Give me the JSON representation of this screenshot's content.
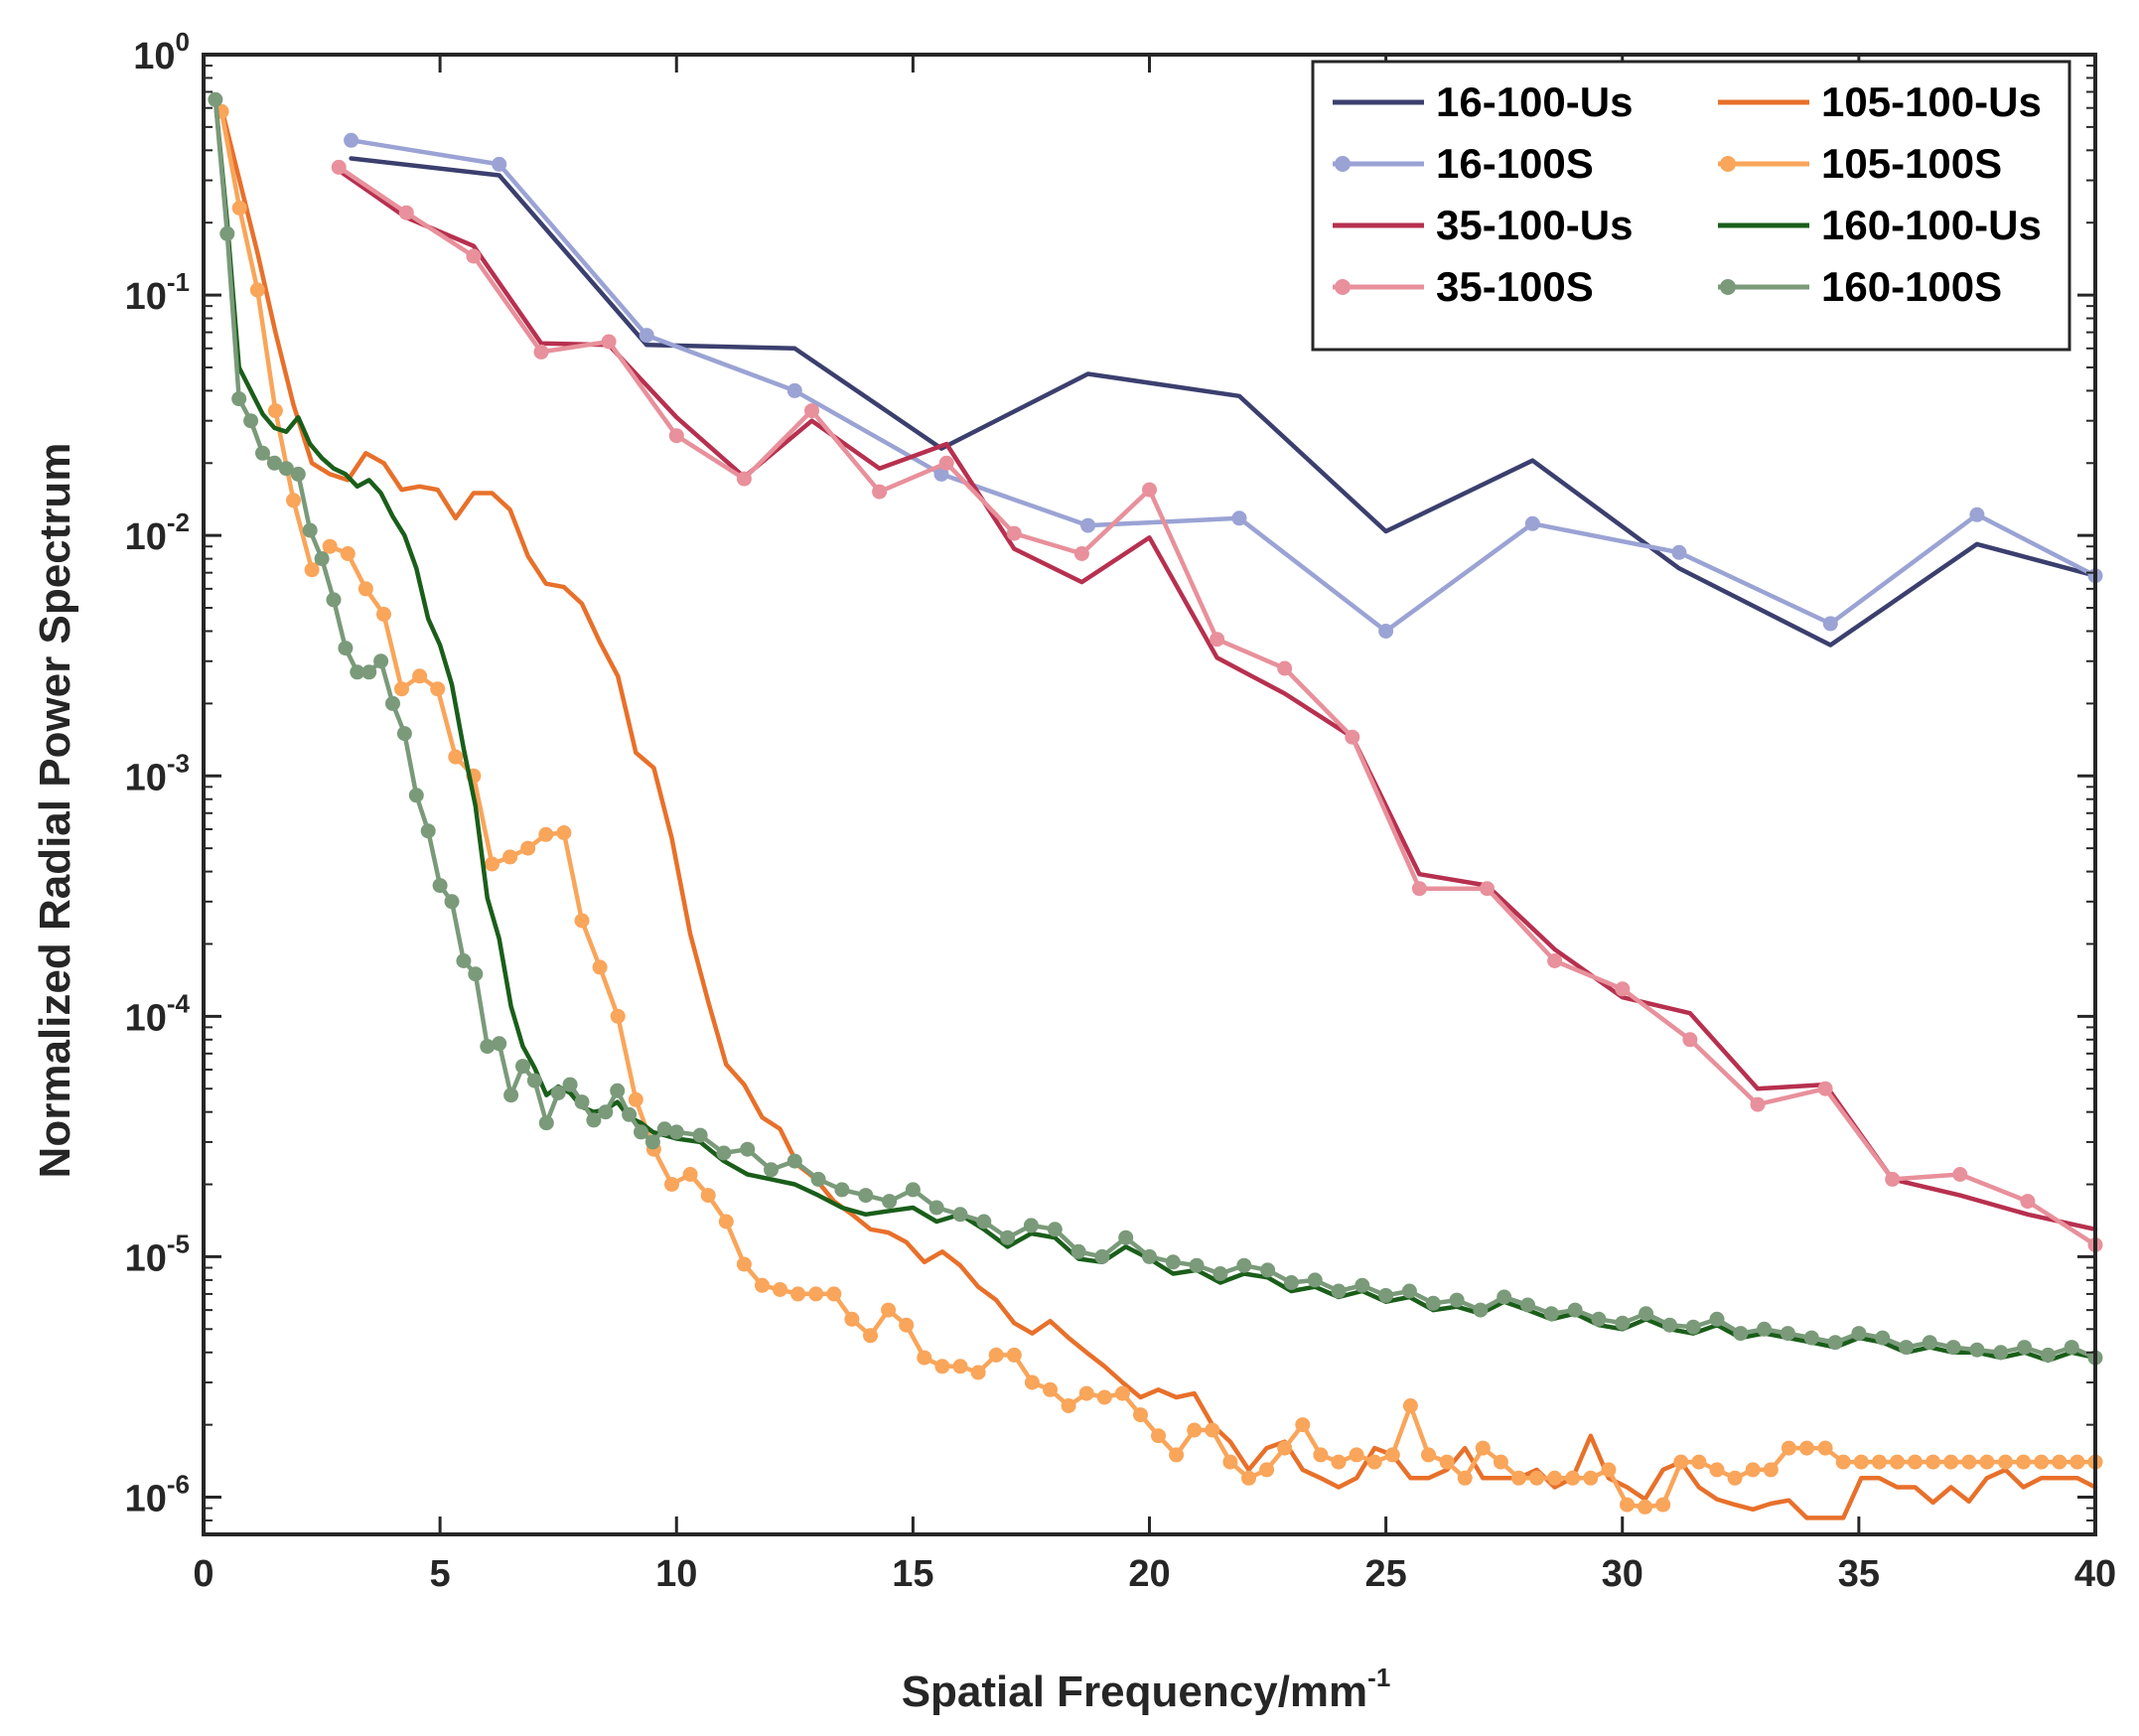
{
  "chart_data": {
    "type": "line",
    "title": "",
    "xlabel": "Spatial Frequency/mm",
    "xlabel_sup": "-1",
    "ylabel": "Normalized Radial Power Spectrum",
    "xlim": [
      0,
      40
    ],
    "ylim": [
      7e-07,
      1
    ],
    "yscale": "log",
    "grid": false,
    "legend_position": "top-right",
    "x_ticks": [
      {
        "value": 0,
        "label": "0"
      },
      {
        "value": 5,
        "label": "5"
      },
      {
        "value": 10,
        "label": "10"
      },
      {
        "value": 15,
        "label": "15"
      },
      {
        "value": 20,
        "label": "20"
      },
      {
        "value": 25,
        "label": "25"
      },
      {
        "value": 30,
        "label": "30"
      },
      {
        "value": 35,
        "label": "35"
      },
      {
        "value": 40,
        "label": "40"
      }
    ],
    "y_ticks": [
      {
        "value": 1,
        "base": "10",
        "exp": "0"
      },
      {
        "value": 0.1,
        "base": "10",
        "exp": "-1"
      },
      {
        "value": 0.01,
        "base": "10",
        "exp": "-2"
      },
      {
        "value": 0.001,
        "base": "10",
        "exp": "-3"
      },
      {
        "value": 0.0001,
        "base": "10",
        "exp": "-4"
      },
      {
        "value": 1e-05,
        "base": "10",
        "exp": "-5"
      },
      {
        "value": 1e-06,
        "base": "10",
        "exp": "-6"
      }
    ],
    "series": [
      {
        "name": "16-100-Us",
        "color": "#3b3f6e",
        "markers": false,
        "x": [
          3.12,
          6.25,
          9.37,
          12.5,
          15.6,
          18.7,
          21.9,
          25.0,
          28.1,
          31.2,
          34.4,
          37.5,
          40.0
        ],
        "y": [
          0.37,
          0.315,
          0.062,
          0.06,
          0.023,
          0.047,
          0.038,
          0.0104,
          0.0205,
          0.0073,
          0.0035,
          0.0092,
          0.0068
        ]
      },
      {
        "name": "16-100S",
        "color": "#9aa3d4",
        "markers": true,
        "x": [
          3.12,
          6.25,
          9.37,
          12.5,
          15.6,
          18.7,
          21.9,
          25.0,
          28.1,
          31.2,
          34.4,
          37.5,
          40.0
        ],
        "y": [
          0.44,
          0.35,
          0.068,
          0.04,
          0.018,
          0.011,
          0.0118,
          0.004,
          0.0112,
          0.0085,
          0.0043,
          0.0122,
          0.0068
        ]
      },
      {
        "name": "35-100-Us",
        "color": "#b7304f",
        "markers": false,
        "x": [
          2.86,
          4.29,
          5.71,
          7.14,
          8.57,
          10.0,
          11.43,
          12.86,
          14.29,
          15.71,
          17.14,
          18.57,
          20.0,
          21.43,
          22.86,
          24.29,
          25.71,
          27.14,
          28.57,
          30.0,
          31.43,
          32.86,
          34.29,
          35.71,
          37.14,
          38.57,
          40.0
        ],
        "y": [
          0.33,
          0.21,
          0.16,
          0.063,
          0.062,
          0.031,
          0.0175,
          0.03,
          0.019,
          0.024,
          0.0088,
          0.0064,
          0.0098,
          0.0031,
          0.0022,
          0.00145,
          0.00039,
          0.00035,
          0.00019,
          0.00012,
          0.000103,
          5e-05,
          5.2e-05,
          2.1e-05,
          1.8e-05,
          1.5e-05,
          1.3e-05
        ]
      },
      {
        "name": "35-100S",
        "color": "#e8909b",
        "markers": true,
        "x": [
          2.86,
          4.29,
          5.71,
          7.14,
          8.57,
          10.0,
          11.43,
          12.86,
          14.29,
          15.71,
          17.14,
          18.57,
          20.0,
          21.43,
          22.86,
          24.29,
          25.71,
          27.14,
          28.57,
          30.0,
          31.43,
          32.86,
          34.29,
          35.71,
          37.14,
          38.57,
          40.0
        ],
        "y": [
          0.34,
          0.22,
          0.145,
          0.058,
          0.064,
          0.026,
          0.0172,
          0.033,
          0.0152,
          0.02,
          0.0102,
          0.0084,
          0.0155,
          0.0037,
          0.0028,
          0.00145,
          0.00034,
          0.00034,
          0.00017,
          0.00013,
          8e-05,
          4.3e-05,
          5e-05,
          2.1e-05,
          2.2e-05,
          1.7e-05,
          1.12e-05
        ]
      },
      {
        "name": "105-100-Us",
        "color": "#e8702a",
        "markers": false,
        "x": [
          0.38,
          0.76,
          1.14,
          1.52,
          1.9,
          2.29,
          2.67,
          3.05,
          3.43,
          3.81,
          4.19,
          4.57,
          4.95,
          5.33,
          5.71,
          6.1,
          6.48,
          6.86,
          7.24,
          7.62,
          8.0,
          8.38,
          8.76,
          9.14,
          9.52,
          9.9,
          10.29,
          10.67,
          11.05,
          11.43,
          11.81,
          12.19,
          12.57,
          12.95,
          13.33,
          13.71,
          14.1,
          14.48,
          14.86,
          15.24,
          15.62,
          16.0,
          16.38,
          16.76,
          17.14,
          17.52,
          17.9,
          18.29,
          18.67,
          19.05,
          19.43,
          19.81,
          20.19,
          20.57,
          20.95,
          21.33,
          21.71,
          22.1,
          22.48,
          22.86,
          23.24,
          23.62,
          24.0,
          24.38,
          24.76,
          25.14,
          25.52,
          25.9,
          26.29,
          26.67,
          27.05,
          27.43,
          27.81,
          28.19,
          28.57,
          28.95,
          29.33,
          29.71,
          30.1,
          30.48,
          30.86,
          31.24,
          31.62,
          32.0,
          32.38,
          32.76,
          33.14,
          33.52,
          33.9,
          34.29,
          34.67,
          35.05,
          35.43,
          35.81,
          36.19,
          36.57,
          36.95,
          37.33,
          37.71,
          38.1,
          38.48,
          38.86,
          39.24,
          39.62,
          40.0
        ],
        "y": [
          0.6,
          0.3,
          0.15,
          0.07,
          0.035,
          0.02,
          0.018,
          0.017,
          0.022,
          0.02,
          0.0155,
          0.016,
          0.0155,
          0.0118,
          0.015,
          0.015,
          0.0128,
          0.0082,
          0.0063,
          0.0061,
          0.0052,
          0.0036,
          0.0026,
          0.00125,
          0.00108,
          0.00055,
          0.00022,
          0.000115,
          6.3e-05,
          5.2e-05,
          3.8e-05,
          3.4e-05,
          2.4e-05,
          2.1e-05,
          1.7e-05,
          1.5e-05,
          1.3e-05,
          1.26e-05,
          1.15e-05,
          9.5e-06,
          1.05e-05,
          9.2e-06,
          7.5e-06,
          6.6e-06,
          5.3e-06,
          4.8e-06,
          5.4e-06,
          4.6e-06,
          4e-06,
          3.5e-06,
          3e-06,
          2.6e-06,
          2.8e-06,
          2.6e-06,
          2.7e-06,
          2e-06,
          1.7e-06,
          1.3e-06,
          1.6e-06,
          1.7e-06,
          1.3e-06,
          1.2e-06,
          1.1e-06,
          1.2e-06,
          1.6e-06,
          1.5e-06,
          1.2e-06,
          1.2e-06,
          1.3e-06,
          1.6e-06,
          1.2e-06,
          1.2e-06,
          1.2e-06,
          1.3e-06,
          1.1e-06,
          1.2e-06,
          1.8e-06,
          1.2e-06,
          1.1e-06,
          9.8e-07,
          1.3e-06,
          1.4e-06,
          1.1e-06,
          9.8e-07,
          9.3e-07,
          8.9e-07,
          9.4e-07,
          9.7e-07,
          8.2e-07,
          8.2e-07,
          8.2e-07,
          1.2e-06,
          1.2e-06,
          1.1e-06,
          1.1e-06,
          9.5e-07,
          1.1e-06,
          9.6e-07,
          1.2e-06,
          1.3e-06,
          1.1e-06,
          1.2e-06,
          1.2e-06,
          1.2e-06,
          1.1e-06
        ]
      },
      {
        "name": "105-100S",
        "color": "#f9a55a",
        "markers": true,
        "x": [
          0.38,
          0.76,
          1.14,
          1.52,
          1.9,
          2.29,
          2.67,
          3.05,
          3.43,
          3.81,
          4.19,
          4.57,
          4.95,
          5.33,
          5.71,
          6.1,
          6.48,
          6.86,
          7.24,
          7.62,
          8.0,
          8.38,
          8.76,
          9.14,
          9.52,
          9.9,
          10.29,
          10.67,
          11.05,
          11.43,
          11.81,
          12.19,
          12.57,
          12.95,
          13.33,
          13.71,
          14.1,
          14.48,
          14.86,
          15.24,
          15.62,
          16.0,
          16.38,
          16.76,
          17.14,
          17.52,
          17.9,
          18.29,
          18.67,
          19.05,
          19.43,
          19.81,
          20.19,
          20.57,
          20.95,
          21.33,
          21.71,
          22.1,
          22.48,
          22.86,
          23.24,
          23.62,
          24.0,
          24.38,
          24.76,
          25.14,
          25.52,
          25.9,
          26.29,
          26.67,
          27.05,
          27.43,
          27.81,
          28.19,
          28.57,
          28.95,
          29.33,
          29.71,
          30.1,
          30.48,
          30.86,
          31.24,
          31.62,
          32.0,
          32.38,
          32.76,
          33.14,
          33.52,
          33.9,
          34.29,
          34.67,
          35.05,
          35.43,
          35.81,
          36.19,
          36.57,
          36.95,
          37.33,
          37.71,
          38.1,
          38.48,
          38.86,
          39.24,
          39.62,
          40.0
        ],
        "y": [
          0.58,
          0.23,
          0.105,
          0.033,
          0.014,
          0.0072,
          0.009,
          0.0084,
          0.006,
          0.0047,
          0.0023,
          0.0026,
          0.0023,
          0.0012,
          0.001,
          0.00043,
          0.00046,
          0.0005,
          0.00057,
          0.00058,
          0.00025,
          0.00016,
          0.0001,
          4.5e-05,
          2.8e-05,
          2e-05,
          2.2e-05,
          1.8e-05,
          1.4e-05,
          9.3e-06,
          7.6e-06,
          7.3e-06,
          7e-06,
          7e-06,
          7e-06,
          5.5e-06,
          4.7e-06,
          6e-06,
          5.2e-06,
          3.8e-06,
          3.5e-06,
          3.5e-06,
          3.3e-06,
          3.9e-06,
          3.9e-06,
          3e-06,
          2.8e-06,
          2.4e-06,
          2.7e-06,
          2.6e-06,
          2.7e-06,
          2.2e-06,
          1.8e-06,
          1.5e-06,
          1.9e-06,
          1.9e-06,
          1.4e-06,
          1.2e-06,
          1.3e-06,
          1.6e-06,
          2e-06,
          1.5e-06,
          1.4e-06,
          1.5e-06,
          1.4e-06,
          1.5e-06,
          2.4e-06,
          1.5e-06,
          1.4e-06,
          1.2e-06,
          1.6e-06,
          1.4e-06,
          1.2e-06,
          1.2e-06,
          1.2e-06,
          1.2e-06,
          1.2e-06,
          1.3e-06,
          9.3e-07,
          9.1e-07,
          9.3e-07,
          1.4e-06,
          1.4e-06,
          1.3e-06,
          1.2e-06,
          1.3e-06,
          1.3e-06,
          1.6e-06,
          1.6e-06,
          1.6e-06,
          1.4e-06,
          1.4e-06,
          1.4e-06,
          1.4e-06,
          1.4e-06,
          1.4e-06,
          1.4e-06,
          1.4e-06,
          1.4e-06,
          1.4e-06,
          1.4e-06,
          1.4e-06,
          1.4e-06,
          1.4e-06,
          1.4e-06
        ]
      },
      {
        "name": "160-100-Us",
        "color": "#1a5e1a",
        "markers": false,
        "x": [
          0.25,
          0.5,
          0.75,
          1.0,
          1.25,
          1.5,
          1.75,
          2.0,
          2.25,
          2.5,
          2.75,
          3.0,
          3.25,
          3.5,
          3.75,
          4.0,
          4.25,
          4.5,
          4.75,
          5.0,
          5.25,
          5.5,
          5.75,
          6.0,
          6.25,
          6.5,
          6.75,
          7.0,
          7.25,
          7.5,
          7.75,
          8.0,
          8.25,
          8.5,
          8.75,
          9.0,
          9.25,
          9.5,
          9.75,
          10.0,
          10.5,
          11.0,
          11.5,
          12.0,
          12.5,
          13.0,
          13.5,
          14.0,
          14.5,
          15.0,
          15.5,
          16.0,
          16.5,
          17.0,
          17.5,
          18.0,
          18.5,
          19.0,
          19.5,
          20.0,
          20.5,
          21.0,
          21.5,
          22.0,
          22.5,
          23.0,
          23.5,
          24.0,
          24.5,
          25.0,
          25.5,
          26.0,
          26.5,
          27.0,
          27.5,
          28.0,
          28.5,
          29.0,
          29.5,
          30.0,
          30.5,
          31.0,
          31.5,
          32.0,
          32.5,
          33.0,
          33.5,
          34.0,
          34.5,
          35.0,
          35.5,
          36.0,
          36.5,
          37.0,
          37.5,
          38.0,
          38.5,
          39.0,
          39.5,
          40.0
        ],
        "y": [
          0.65,
          0.2,
          0.05,
          0.04,
          0.032,
          0.028,
          0.027,
          0.031,
          0.024,
          0.021,
          0.019,
          0.018,
          0.016,
          0.017,
          0.015,
          0.012,
          0.01,
          0.0073,
          0.0045,
          0.0035,
          0.0024,
          0.0013,
          0.00075,
          0.00031,
          0.00021,
          0.00011,
          7.5e-05,
          6.1e-05,
          4.7e-05,
          5.1e-05,
          4.8e-05,
          4.2e-05,
          4e-05,
          4.1e-05,
          4.4e-05,
          3.8e-05,
          3.6e-05,
          3.3e-05,
          3.2e-05,
          3.1e-05,
          3e-05,
          2.5e-05,
          2.2e-05,
          2.1e-05,
          2e-05,
          1.8e-05,
          1.6e-05,
          1.5e-05,
          1.55e-05,
          1.6e-05,
          1.4e-05,
          1.5e-05,
          1.3e-05,
          1.1e-05,
          1.25e-05,
          1.2e-05,
          9.8e-06,
          9.5e-06,
          1.1e-05,
          9.8e-06,
          8.5e-06,
          8.8e-06,
          7.8e-06,
          8.5e-06,
          8.2e-06,
          7.2e-06,
          7.5e-06,
          6.8e-06,
          7.2e-06,
          6.5e-06,
          6.8e-06,
          6e-06,
          6.2e-06,
          5.8e-06,
          6.5e-06,
          6e-06,
          5.5e-06,
          5.8e-06,
          5.2e-06,
          5e-06,
          5.5e-06,
          5e-06,
          4.8e-06,
          5.2e-06,
          4.6e-06,
          4.8e-06,
          4.6e-06,
          4.4e-06,
          4.2e-06,
          4.6e-06,
          4.4e-06,
          4e-06,
          4.2e-06,
          4e-06,
          4e-06,
          3.8e-06,
          4e-06,
          3.7e-06,
          4e-06,
          3.8e-06
        ]
      },
      {
        "name": "160-100S",
        "color": "#7a9a7a",
        "markers": true,
        "x": [
          0.25,
          0.5,
          0.75,
          1.0,
          1.25,
          1.5,
          1.75,
          2.0,
          2.25,
          2.5,
          2.75,
          3.0,
          3.25,
          3.5,
          3.75,
          4.0,
          4.25,
          4.5,
          4.75,
          5.0,
          5.25,
          5.5,
          5.75,
          6.0,
          6.25,
          6.5,
          6.75,
          7.0,
          7.25,
          7.5,
          7.75,
          8.0,
          8.25,
          8.5,
          8.75,
          9.0,
          9.25,
          9.5,
          9.75,
          10.0,
          10.5,
          11.0,
          11.5,
          12.0,
          12.5,
          13.0,
          13.5,
          14.0,
          14.5,
          15.0,
          15.5,
          16.0,
          16.5,
          17.0,
          17.5,
          18.0,
          18.5,
          19.0,
          19.5,
          20.0,
          20.5,
          21.0,
          21.5,
          22.0,
          22.5,
          23.0,
          23.5,
          24.0,
          24.5,
          25.0,
          25.5,
          26.0,
          26.5,
          27.0,
          27.5,
          28.0,
          28.5,
          29.0,
          29.5,
          30.0,
          30.5,
          31.0,
          31.5,
          32.0,
          32.5,
          33.0,
          33.5,
          34.0,
          34.5,
          35.0,
          35.5,
          36.0,
          36.5,
          37.0,
          37.5,
          38.0,
          38.5,
          39.0,
          39.5,
          40.0
        ],
        "y": [
          0.65,
          0.18,
          0.037,
          0.03,
          0.022,
          0.02,
          0.019,
          0.018,
          0.0105,
          0.008,
          0.0054,
          0.0034,
          0.0027,
          0.0027,
          0.003,
          0.002,
          0.0015,
          0.00083,
          0.00059,
          0.00035,
          0.0003,
          0.00017,
          0.00015,
          7.5e-05,
          7.7e-05,
          4.7e-05,
          6.2e-05,
          5.4e-05,
          3.6e-05,
          4.8e-05,
          5.2e-05,
          4.4e-05,
          3.7e-05,
          4e-05,
          4.9e-05,
          3.9e-05,
          3.3e-05,
          3e-05,
          3.4e-05,
          3.3e-05,
          3.2e-05,
          2.7e-05,
          2.8e-05,
          2.3e-05,
          2.5e-05,
          2.1e-05,
          1.9e-05,
          1.8e-05,
          1.7e-05,
          1.9e-05,
          1.6e-05,
          1.5e-05,
          1.4e-05,
          1.2e-05,
          1.35e-05,
          1.3e-05,
          1.05e-05,
          1e-05,
          1.2e-05,
          1e-05,
          9.5e-06,
          9.2e-06,
          8.5e-06,
          9.2e-06,
          8.8e-06,
          7.8e-06,
          8e-06,
          7.2e-06,
          7.6e-06,
          6.9e-06,
          7.2e-06,
          6.4e-06,
          6.6e-06,
          6e-06,
          6.8e-06,
          6.3e-06,
          5.8e-06,
          6e-06,
          5.5e-06,
          5.3e-06,
          5.8e-06,
          5.2e-06,
          5.1e-06,
          5.5e-06,
          4.8e-06,
          5e-06,
          4.8e-06,
          4.6e-06,
          4.4e-06,
          4.8e-06,
          4.6e-06,
          4.2e-06,
          4.4e-06,
          4.2e-06,
          4.1e-06,
          4e-06,
          4.2e-06,
          3.9e-06,
          4.2e-06,
          3.8e-06
        ]
      }
    ]
  }
}
